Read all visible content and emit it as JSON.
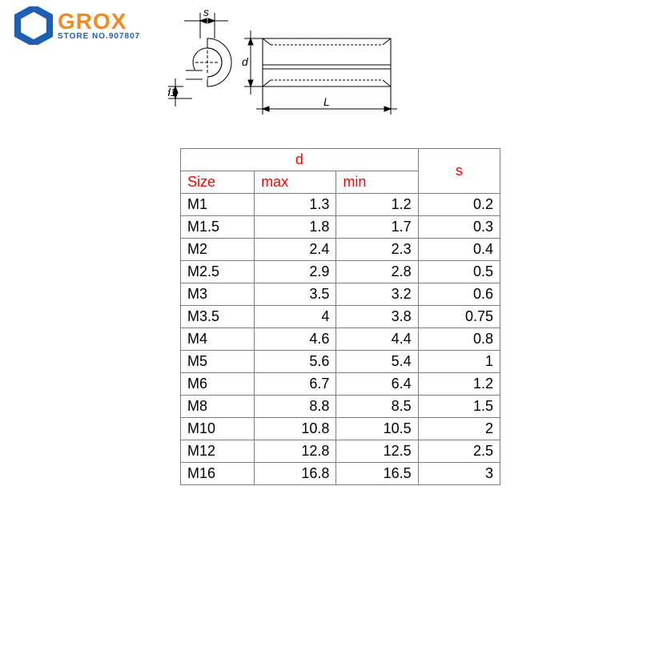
{
  "logo": {
    "brand": "GROX",
    "sub": "STORE NO.907807",
    "hex_fill": "#1e5fb4",
    "brand_color": "#f28b1e",
    "sub_color": "#1e5fb4"
  },
  "diagram": {
    "labels": {
      "s": "s",
      "d1": "d1",
      "d": "d",
      "L": "L"
    },
    "stroke": "#000000"
  },
  "table": {
    "border_color": "#7f7f7f",
    "header_color_d": "#ff0000",
    "header_color_s": "#ff0000",
    "header_color_size": "#ff0000",
    "header_color_minmax": "#ff0000",
    "text_color": "#000000",
    "headers": {
      "d": "d",
      "s": "s",
      "size": "Size",
      "max": "max",
      "min": "min"
    },
    "rows": [
      {
        "size": "M1",
        "max": "1.3",
        "min": "1.2",
        "s": "0.2"
      },
      {
        "size": "M1.5",
        "max": "1.8",
        "min": "1.7",
        "s": "0.3"
      },
      {
        "size": "M2",
        "max": "2.4",
        "min": "2.3",
        "s": "0.4"
      },
      {
        "size": "M2.5",
        "max": "2.9",
        "min": "2.8",
        "s": "0.5"
      },
      {
        "size": "M3",
        "max": "3.5",
        "min": "3.2",
        "s": "0.6"
      },
      {
        "size": "M3.5",
        "max": "4",
        "min": "3.8",
        "s": "0.75"
      },
      {
        "size": "M4",
        "max": "4.6",
        "min": "4.4",
        "s": "0.8"
      },
      {
        "size": "M5",
        "max": "5.6",
        "min": "5.4",
        "s": "1"
      },
      {
        "size": "M6",
        "max": "6.7",
        "min": "6.4",
        "s": "1.2"
      },
      {
        "size": "M8",
        "max": "8.8",
        "min": "8.5",
        "s": "1.5"
      },
      {
        "size": "M10",
        "max": "10.8",
        "min": "10.5",
        "s": "2"
      },
      {
        "size": "M12",
        "max": "12.8",
        "min": "12.5",
        "s": "2.5"
      },
      {
        "size": "M16",
        "max": "16.8",
        "min": "16.5",
        "s": "3"
      }
    ]
  }
}
